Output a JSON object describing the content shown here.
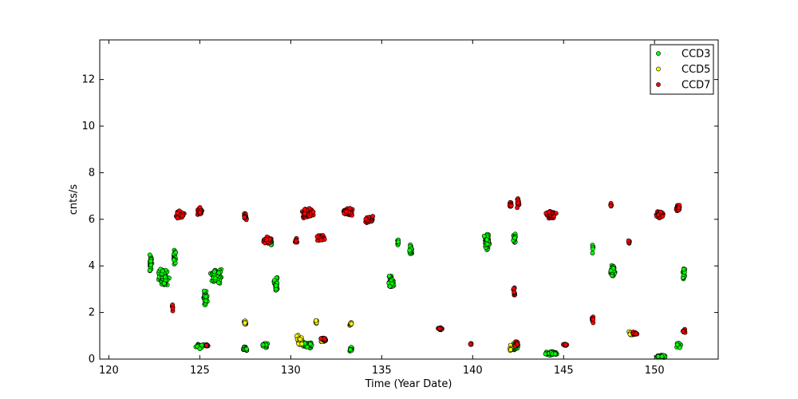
{
  "chart_data": {
    "type": "scatter",
    "title": "",
    "xlabel": "Time (Year Date)",
    "ylabel": "cnts/s",
    "xlim": [
      119.5,
      153.5
    ],
    "ylim": [
      0,
      13.7
    ],
    "xticks": [
      120,
      125,
      130,
      135,
      140,
      145,
      150
    ],
    "yticks": [
      0,
      2,
      4,
      6,
      8,
      10,
      12
    ],
    "grid": false,
    "legend_position": "top-right",
    "series": [
      {
        "name": "CCD3",
        "color": "#00ff00",
        "clusters": [
          {
            "x": 122.3,
            "y": 4.1,
            "dx": 0.15,
            "dy": 0.5,
            "n": 30
          },
          {
            "x": 123.0,
            "y": 3.5,
            "dx": 0.35,
            "dy": 0.45,
            "n": 70
          },
          {
            "x": 123.6,
            "y": 4.4,
            "dx": 0.1,
            "dy": 0.4,
            "n": 20
          },
          {
            "x": 125.3,
            "y": 2.7,
            "dx": 0.15,
            "dy": 0.4,
            "n": 25
          },
          {
            "x": 125.9,
            "y": 3.6,
            "dx": 0.4,
            "dy": 0.4,
            "n": 70
          },
          {
            "x": 125.0,
            "y": 0.55,
            "dx": 0.25,
            "dy": 0.15,
            "n": 40
          },
          {
            "x": 127.5,
            "y": 0.45,
            "dx": 0.15,
            "dy": 0.15,
            "n": 20
          },
          {
            "x": 128.6,
            "y": 0.6,
            "dx": 0.2,
            "dy": 0.15,
            "n": 22
          },
          {
            "x": 128.9,
            "y": 5.0,
            "dx": 0.08,
            "dy": 0.25,
            "n": 10
          },
          {
            "x": 129.2,
            "y": 3.2,
            "dx": 0.15,
            "dy": 0.4,
            "n": 30
          },
          {
            "x": 130.9,
            "y": 0.6,
            "dx": 0.4,
            "dy": 0.15,
            "n": 70
          },
          {
            "x": 133.3,
            "y": 0.4,
            "dx": 0.1,
            "dy": 0.15,
            "n": 18
          },
          {
            "x": 135.5,
            "y": 3.3,
            "dx": 0.2,
            "dy": 0.35,
            "n": 50
          },
          {
            "x": 135.9,
            "y": 5.0,
            "dx": 0.05,
            "dy": 0.3,
            "n": 10
          },
          {
            "x": 136.6,
            "y": 4.7,
            "dx": 0.1,
            "dy": 0.3,
            "n": 25
          },
          {
            "x": 140.8,
            "y": 5.0,
            "dx": 0.2,
            "dy": 0.5,
            "n": 50
          },
          {
            "x": 142.3,
            "y": 5.2,
            "dx": 0.1,
            "dy": 0.35,
            "n": 15
          },
          {
            "x": 142.3,
            "y": 0.5,
            "dx": 0.3,
            "dy": 0.2,
            "n": 45
          },
          {
            "x": 144.3,
            "y": 0.25,
            "dx": 0.4,
            "dy": 0.1,
            "n": 60
          },
          {
            "x": 147.7,
            "y": 3.8,
            "dx": 0.15,
            "dy": 0.35,
            "n": 45
          },
          {
            "x": 146.6,
            "y": 4.8,
            "dx": 0.05,
            "dy": 0.3,
            "n": 6
          },
          {
            "x": 150.4,
            "y": 0.12,
            "dx": 0.3,
            "dy": 0.08,
            "n": 60
          },
          {
            "x": 151.6,
            "y": 3.7,
            "dx": 0.08,
            "dy": 0.4,
            "n": 20
          },
          {
            "x": 151.3,
            "y": 0.6,
            "dx": 0.2,
            "dy": 0.2,
            "n": 15
          }
        ]
      },
      {
        "name": "CCD5",
        "color": "#ffff00",
        "clusters": [
          {
            "x": 127.5,
            "y": 1.55,
            "dx": 0.1,
            "dy": 0.15,
            "n": 12
          },
          {
            "x": 130.5,
            "y": 0.8,
            "dx": 0.2,
            "dy": 0.3,
            "n": 20
          },
          {
            "x": 131.4,
            "y": 1.6,
            "dx": 0.08,
            "dy": 0.1,
            "n": 8
          },
          {
            "x": 131.8,
            "y": 0.8,
            "dx": 0.2,
            "dy": 0.1,
            "n": 20
          },
          {
            "x": 133.3,
            "y": 1.5,
            "dx": 0.1,
            "dy": 0.1,
            "n": 10
          },
          {
            "x": 142.1,
            "y": 0.45,
            "dx": 0.08,
            "dy": 0.2,
            "n": 10
          },
          {
            "x": 148.7,
            "y": 1.1,
            "dx": 0.15,
            "dy": 0.15,
            "n": 12
          }
        ]
      },
      {
        "name": "CCD7",
        "color": "#ff0000",
        "clusters": [
          {
            "x": 123.9,
            "y": 6.2,
            "dx": 0.3,
            "dy": 0.2,
            "n": 45
          },
          {
            "x": 123.5,
            "y": 2.2,
            "dx": 0.05,
            "dy": 0.2,
            "n": 8
          },
          {
            "x": 125.0,
            "y": 6.35,
            "dx": 0.15,
            "dy": 0.2,
            "n": 35
          },
          {
            "x": 125.4,
            "y": 0.6,
            "dx": 0.15,
            "dy": 0.1,
            "n": 10
          },
          {
            "x": 127.5,
            "y": 6.1,
            "dx": 0.12,
            "dy": 0.2,
            "n": 25
          },
          {
            "x": 128.7,
            "y": 5.1,
            "dx": 0.25,
            "dy": 0.2,
            "n": 40
          },
          {
            "x": 130.3,
            "y": 5.1,
            "dx": 0.1,
            "dy": 0.15,
            "n": 10
          },
          {
            "x": 130.9,
            "y": 6.3,
            "dx": 0.4,
            "dy": 0.3,
            "n": 80
          },
          {
            "x": 131.7,
            "y": 5.2,
            "dx": 0.3,
            "dy": 0.2,
            "n": 30
          },
          {
            "x": 131.8,
            "y": 0.85,
            "dx": 0.25,
            "dy": 0.1,
            "n": 18
          },
          {
            "x": 133.1,
            "y": 6.3,
            "dx": 0.4,
            "dy": 0.2,
            "n": 60
          },
          {
            "x": 134.3,
            "y": 6.0,
            "dx": 0.25,
            "dy": 0.2,
            "n": 40
          },
          {
            "x": 138.2,
            "y": 1.3,
            "dx": 0.2,
            "dy": 0.07,
            "n": 25
          },
          {
            "x": 139.9,
            "y": 0.65,
            "dx": 0.05,
            "dy": 0.08,
            "n": 6
          },
          {
            "x": 142.1,
            "y": 6.6,
            "dx": 0.1,
            "dy": 0.2,
            "n": 18
          },
          {
            "x": 142.5,
            "y": 6.7,
            "dx": 0.08,
            "dy": 0.25,
            "n": 14
          },
          {
            "x": 142.3,
            "y": 2.9,
            "dx": 0.08,
            "dy": 0.3,
            "n": 10
          },
          {
            "x": 142.4,
            "y": 0.65,
            "dx": 0.2,
            "dy": 0.15,
            "n": 15
          },
          {
            "x": 144.3,
            "y": 6.2,
            "dx": 0.35,
            "dy": 0.2,
            "n": 60
          },
          {
            "x": 145.1,
            "y": 0.6,
            "dx": 0.15,
            "dy": 0.1,
            "n": 10
          },
          {
            "x": 146.6,
            "y": 1.7,
            "dx": 0.05,
            "dy": 0.2,
            "n": 8
          },
          {
            "x": 147.6,
            "y": 6.6,
            "dx": 0.05,
            "dy": 0.15,
            "n": 5
          },
          {
            "x": 148.6,
            "y": 5.0,
            "dx": 0.05,
            "dy": 0.15,
            "n": 6
          },
          {
            "x": 148.9,
            "y": 1.1,
            "dx": 0.2,
            "dy": 0.1,
            "n": 18
          },
          {
            "x": 150.3,
            "y": 6.2,
            "dx": 0.25,
            "dy": 0.2,
            "n": 45
          },
          {
            "x": 151.3,
            "y": 6.5,
            "dx": 0.15,
            "dy": 0.2,
            "n": 25
          },
          {
            "x": 151.6,
            "y": 1.2,
            "dx": 0.1,
            "dy": 0.1,
            "n": 10
          }
        ]
      }
    ]
  }
}
